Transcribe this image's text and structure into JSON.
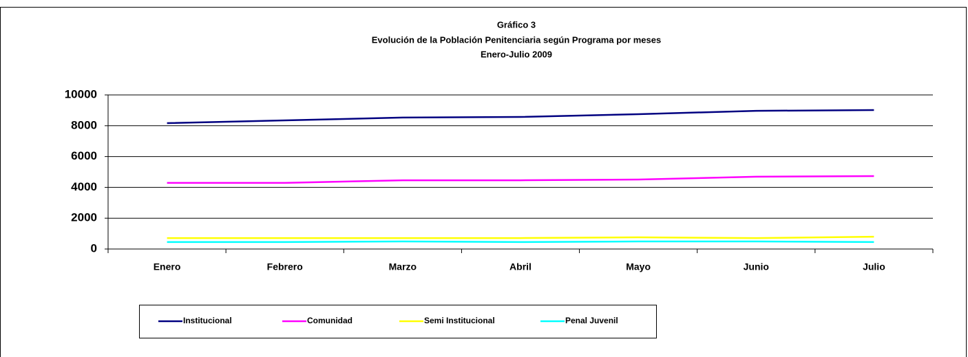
{
  "chart_data": {
    "type": "line",
    "title": [
      "Gráfico 3",
      "Evolución de la Población Penitenciaria según Programa por meses",
      "Enero-Julio  2009"
    ],
    "categories": [
      "Enero",
      "Febrero",
      "Marzo",
      "Abril",
      "Mayo",
      "Junio",
      "Julio"
    ],
    "series": [
      {
        "name": "Institucional",
        "color": "#000080",
        "values": [
          8170,
          8350,
          8530,
          8570,
          8750,
          8970,
          9020
        ]
      },
      {
        "name": "Comunidad",
        "color": "#ff00ff",
        "values": [
          4290,
          4290,
          4460,
          4460,
          4510,
          4690,
          4730
        ]
      },
      {
        "name": "Semi Institucional",
        "color": "#ffff00",
        "values": [
          710,
          710,
          710,
          710,
          760,
          710,
          800
        ]
      },
      {
        "name": "Penal Juvenil",
        "color": "#00ffff",
        "values": [
          450,
          450,
          490,
          450,
          490,
          490,
          450
        ]
      }
    ],
    "ylim": [
      0,
      10000
    ],
    "yticks": [
      0,
      2000,
      4000,
      6000,
      8000,
      10000
    ],
    "grid": true,
    "legend": "bottom"
  }
}
